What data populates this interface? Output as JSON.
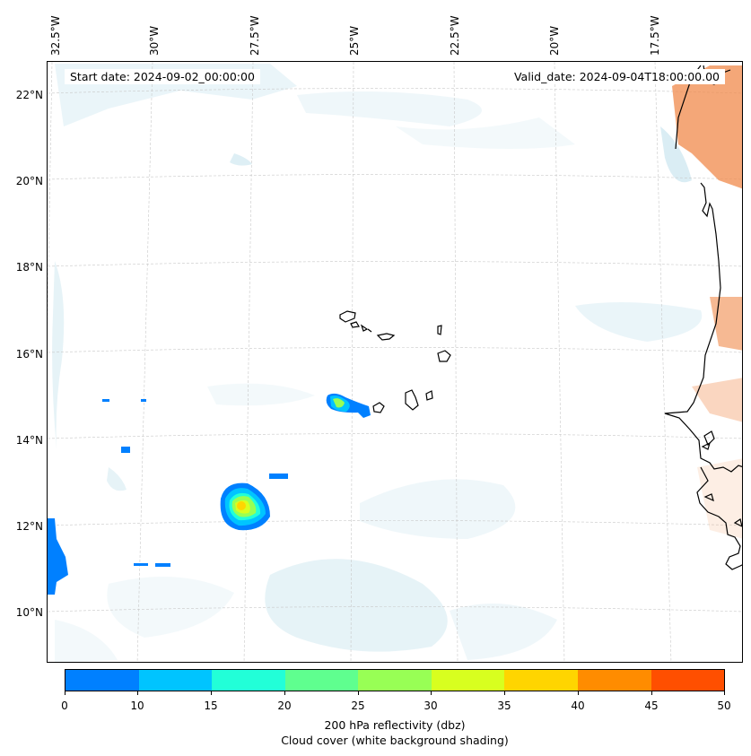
{
  "map": {
    "start_date": "Start date: 2024-09-02_00:00:00",
    "valid_date": "Valid_date: 2024-09-04T18:00:00.00",
    "lon_labels": [
      "32.5°W",
      "30°W",
      "27.5°W",
      "25°W",
      "22.5°W",
      "20°W",
      "17.5°W"
    ],
    "lat_labels": [
      "22°N",
      "20°N",
      "18°N",
      "16°N",
      "14°N",
      "12°N",
      "10°N"
    ],
    "land_shading_color": "#f08a4b",
    "cloud_shading_color": "#add8e6",
    "coastline_color": "#000000"
  },
  "colorbar": {
    "ticks": [
      "0",
      "10",
      "15",
      "20",
      "25",
      "30",
      "35",
      "40",
      "45",
      "50"
    ],
    "colors": [
      "#0080ff",
      "#00c4ff",
      "#22ffd8",
      "#5fff8f",
      "#98ff55",
      "#d8ff1f",
      "#ffd500",
      "#ff8c00",
      "#ff4f00"
    ],
    "title_line1": "200 hPa reflectivity (dbz)",
    "title_line2": "Cloud cover (white background shading)"
  }
}
